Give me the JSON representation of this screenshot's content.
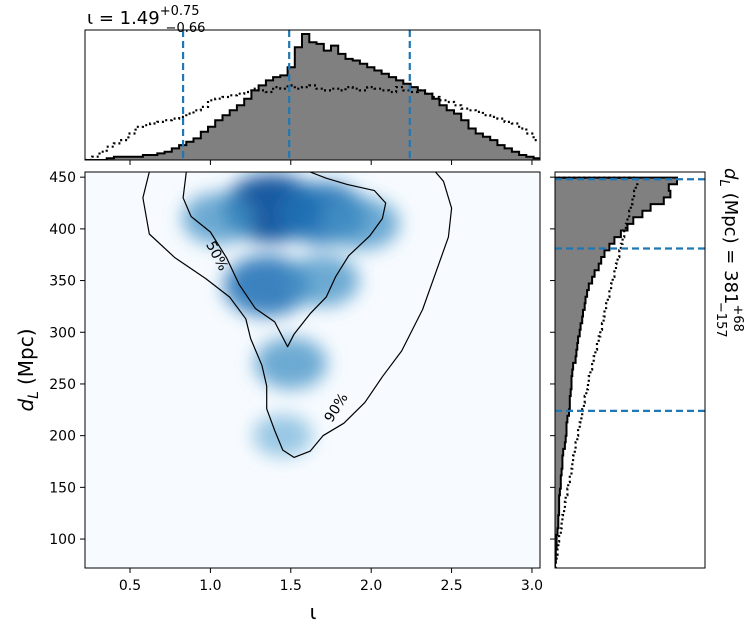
{
  "chart_data": [
    {
      "type": "heatmap",
      "panel": "joint",
      "xlabel": "ι",
      "ylabel_main": "d",
      "ylabel_sub": "L",
      "ylabel_unit": "(Mpc)",
      "xlim": [
        0.22,
        3.05
      ],
      "ylim": [
        72,
        455
      ],
      "x_ticks": [
        0.5,
        1.0,
        1.5,
        2.0,
        2.5,
        3.0
      ],
      "x_tick_labels": [
        "0.5",
        "1.0",
        "1.5",
        "2.0",
        "2.5",
        "3.0"
      ],
      "y_ticks": [
        100,
        150,
        200,
        250,
        300,
        350,
        400,
        450
      ],
      "y_tick_labels": [
        "100",
        "150",
        "200",
        "250",
        "300",
        "350",
        "400",
        "450"
      ],
      "colormap": "Blues",
      "density_peaks": [
        {
          "x": 1.38,
          "y": 420,
          "weight": 1.0
        },
        {
          "x": 1.7,
          "y": 415,
          "weight": 0.85
        },
        {
          "x": 1.05,
          "y": 410,
          "weight": 0.55
        },
        {
          "x": 1.95,
          "y": 405,
          "weight": 0.55
        },
        {
          "x": 1.35,
          "y": 345,
          "weight": 0.8
        },
        {
          "x": 1.7,
          "y": 350,
          "weight": 0.55
        },
        {
          "x": 1.5,
          "y": 270,
          "weight": 0.55
        },
        {
          "x": 1.45,
          "y": 200,
          "weight": 0.3
        }
      ],
      "contours": [
        {
          "label": "50%",
          "points": [
            [
              0.85,
              455
            ],
            [
              0.83,
              430
            ],
            [
              0.88,
              412
            ],
            [
              1.0,
              397
            ],
            [
              1.1,
              372
            ],
            [
              1.18,
              346
            ],
            [
              1.28,
              323
            ],
            [
              1.4,
              310
            ],
            [
              1.48,
              286
            ],
            [
              1.52,
              298
            ],
            [
              1.62,
              318
            ],
            [
              1.72,
              334
            ],
            [
              1.78,
              354
            ],
            [
              1.86,
              374
            ],
            [
              1.99,
              393
            ],
            [
              2.07,
              410
            ],
            [
              2.09,
              425
            ],
            [
              2.02,
              437
            ],
            [
              1.85,
              443
            ],
            [
              1.72,
              449
            ],
            [
              1.62,
              455
            ]
          ]
        },
        {
          "label": "90%",
          "points": [
            [
              0.62,
              455
            ],
            [
              0.58,
              430
            ],
            [
              0.62,
              395
            ],
            [
              0.78,
              372
            ],
            [
              0.97,
              352
            ],
            [
              1.12,
              334
            ],
            [
              1.22,
              313
            ],
            [
              1.25,
              294
            ],
            [
              1.32,
              268
            ],
            [
              1.35,
              248
            ],
            [
              1.35,
              226
            ],
            [
              1.4,
              205
            ],
            [
              1.45,
              186
            ],
            [
              1.52,
              179
            ],
            [
              1.62,
              185
            ],
            [
              1.7,
              200
            ],
            [
              1.83,
              212
            ],
            [
              1.96,
              232
            ],
            [
              2.07,
              257
            ],
            [
              2.19,
              282
            ],
            [
              2.32,
              322
            ],
            [
              2.4,
              357
            ],
            [
              2.48,
              392
            ],
            [
              2.5,
              420
            ],
            [
              2.45,
              446
            ],
            [
              2.4,
              455
            ]
          ]
        }
      ]
    },
    {
      "type": "histogram",
      "panel": "top",
      "title_text": "ι = 1.49",
      "title_sup": "+0.75",
      "title_sub": "−0.66",
      "xlim": [
        0.22,
        3.05
      ],
      "bin_edges_start": 0.22,
      "bin_width": 0.045,
      "series": [
        {
          "style": "filled",
          "values": [
            0,
            0,
            0,
            1,
            2,
            2,
            2,
            2,
            3,
            3,
            4,
            5,
            7,
            9,
            11,
            13,
            17,
            20,
            24,
            27,
            30,
            33,
            37,
            42,
            45,
            48,
            50,
            51,
            56,
            68,
            76,
            71,
            70,
            66,
            69,
            64,
            61,
            60,
            58,
            56,
            54,
            52,
            50,
            48,
            46,
            44,
            42,
            40,
            37,
            33,
            30,
            28,
            24,
            19,
            16,
            14,
            12,
            9,
            7,
            5,
            3,
            2,
            1,
            0
          ]
        },
        {
          "style": "dotted",
          "values": [
            0,
            2,
            5,
            8,
            10,
            12,
            16,
            20,
            21,
            22,
            23,
            24,
            25,
            26,
            28,
            30,
            32,
            36,
            37,
            38,
            39,
            40,
            41,
            43,
            42,
            41,
            44,
            43,
            45,
            43,
            44,
            45,
            43,
            42,
            43,
            42,
            44,
            43,
            42,
            44,
            43,
            42,
            41,
            44,
            42,
            41,
            42,
            40,
            38,
            36,
            35,
            33,
            31,
            30,
            29,
            27,
            26,
            25,
            23,
            22,
            19,
            16,
            12,
            8
          ]
        }
      ],
      "vlines": [
        0.83,
        1.49,
        2.24
      ]
    },
    {
      "type": "histogram",
      "panel": "right",
      "orientation": "horizontal",
      "label_main": "d",
      "label_sub": "L",
      "label_unit": "(Mpc) = 381",
      "label_sup": "+68",
      "label_subscript": "−157",
      "ylim": [
        72,
        455
      ],
      "bin_edges_start": 72,
      "bin_width": 6.4,
      "series": [
        {
          "style": "filled",
          "values": [
            0,
            1,
            1,
            2,
            2,
            3,
            4,
            4,
            5,
            5,
            5,
            6,
            7,
            7,
            8,
            9,
            9,
            10,
            12,
            13,
            14,
            14,
            15,
            17,
            18,
            18,
            19,
            20,
            20,
            21,
            22,
            25,
            26,
            27,
            28,
            30,
            31,
            33,
            34,
            36,
            37,
            39,
            41,
            45,
            48,
            53,
            56,
            60,
            66,
            72,
            80,
            88,
            95,
            106,
            116,
            132,
            140,
            138,
            148
          ]
        },
        {
          "style": "dotted",
          "values": [
            1,
            2,
            3,
            4,
            5,
            7,
            8,
            9,
            11,
            12,
            13,
            15,
            16,
            18,
            20,
            21,
            22,
            24,
            25,
            27,
            28,
            30,
            32,
            33,
            35,
            36,
            38,
            40,
            41,
            43,
            45,
            47,
            49,
            51,
            53,
            55,
            57,
            59,
            60,
            62,
            64,
            66,
            68,
            70,
            72,
            74,
            76,
            78,
            80,
            82,
            84,
            86,
            88,
            90,
            92,
            94,
            96,
            98,
            100
          ]
        }
      ],
      "hlines": [
        381,
        448,
        224
      ]
    }
  ]
}
